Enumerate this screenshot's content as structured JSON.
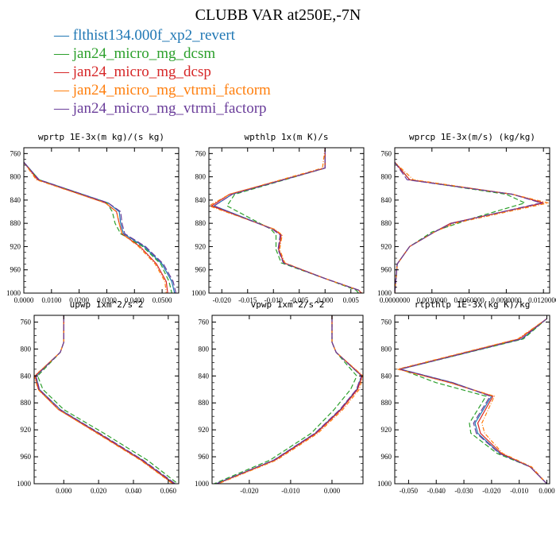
{
  "title": "CLUBB VAR at250E,-7N",
  "legend": [
    {
      "label": "flthist134.000f_xp2_revert",
      "color": "#1f77b4"
    },
    {
      "label": "jan24_micro_mg_dcsm",
      "color": "#2ca02c"
    },
    {
      "label": "jan24_micro_mg_dcsp",
      "color": "#d62728"
    },
    {
      "label": "jan24_micro_mg_vtrmi_factorm",
      "color": "#ff7f0e"
    },
    {
      "label": "jan24_micro_mg_vtrmi_factorp",
      "color": "#6a3d9a"
    }
  ],
  "chart_data": [
    {
      "type": "line",
      "title": "wprtp  1E-3x(m kg)/(s kg)",
      "xlim": [
        0.0,
        0.056
      ],
      "ylim": [
        1000,
        750
      ],
      "xticks": [
        0.0,
        0.01,
        0.02,
        0.03,
        0.04,
        0.05
      ],
      "xtick_labels": [
        "0.0000",
        "0.0100",
        "0.0200",
        "0.0300",
        "0.0400",
        "0.0500"
      ],
      "yticks": [
        760,
        800,
        840,
        880,
        920,
        960,
        1000
      ],
      "series": [
        {
          "name": "flthist134.000f_xp2_revert",
          "x": [
            0.0,
            0.0055,
            0.0305,
            0.0345,
            0.035,
            0.036,
            0.0435,
            0.05,
            0.0535,
            0.0545
          ],
          "y": [
            775,
            805,
            845,
            860,
            880,
            898,
            920,
            950,
            980,
            1000
          ]
        },
        {
          "name": "jan24_micro_mg_dcsm",
          "x": [
            0.0,
            0.0055,
            0.03,
            0.032,
            0.033,
            0.035,
            0.043,
            0.0495,
            0.0525,
            0.0535
          ],
          "y": [
            775,
            805,
            845,
            860,
            880,
            898,
            920,
            950,
            980,
            1000
          ]
        },
        {
          "name": "jan24_micro_mg_dcsp",
          "x": [
            0.0,
            0.005,
            0.0295,
            0.0335,
            0.0345,
            0.0355,
            0.042,
            0.048,
            0.0515,
            0.052
          ],
          "y": [
            775,
            805,
            845,
            860,
            880,
            898,
            920,
            950,
            980,
            1000
          ]
        },
        {
          "name": "jan24_micro_mg_vtrmi_factorm",
          "x": [
            0.0,
            0.0045,
            0.0295,
            0.0335,
            0.0345,
            0.0355,
            0.0415,
            0.0475,
            0.051,
            0.0515
          ],
          "y": [
            775,
            805,
            845,
            860,
            880,
            898,
            920,
            950,
            980,
            1000
          ]
        },
        {
          "name": "jan24_micro_mg_vtrmi_factorp",
          "x": [
            0.0,
            0.0055,
            0.0305,
            0.035,
            0.0355,
            0.0365,
            0.044,
            0.0505,
            0.054,
            0.055
          ],
          "y": [
            775,
            805,
            845,
            860,
            880,
            898,
            920,
            950,
            980,
            1000
          ]
        }
      ]
    },
    {
      "type": "line",
      "title": "wpthlp  1x(m K)/s",
      "xlim": [
        -0.0225,
        0.0075
      ],
      "ylim": [
        1000,
        750
      ],
      "xticks": [
        -0.02,
        -0.015,
        -0.01,
        -0.005,
        0.0,
        0.005
      ],
      "xtick_labels": [
        "-0.020",
        "-0.015",
        "-0.010",
        "-0.005",
        "0.000",
        "0.005"
      ],
      "yticks": [
        760,
        800,
        840,
        880,
        920,
        960,
        1000
      ],
      "series": [
        {
          "name": "flthist134.000f_xp2_revert",
          "x": [
            0.0,
            0.0,
            -0.018,
            -0.0215,
            -0.01,
            -0.0085,
            -0.009,
            -0.008,
            0.0,
            0.0065,
            0.007
          ],
          "y": [
            750,
            785,
            830,
            850,
            890,
            900,
            925,
            948,
            975,
            995,
            1000
          ]
        },
        {
          "name": "jan24_micro_mg_dcsm",
          "x": [
            0.0,
            0.0,
            -0.0175,
            -0.019,
            -0.0105,
            -0.0095,
            -0.0095,
            -0.0085,
            0.0,
            0.006,
            0.0065
          ],
          "y": [
            750,
            785,
            830,
            850,
            890,
            900,
            925,
            948,
            975,
            995,
            1000
          ]
        },
        {
          "name": "jan24_micro_mg_dcsp",
          "x": [
            0.0,
            0.0,
            -0.0185,
            -0.022,
            -0.01,
            -0.0085,
            -0.009,
            -0.008,
            0.0,
            0.0065,
            0.007
          ],
          "y": [
            750,
            785,
            830,
            850,
            890,
            900,
            925,
            948,
            975,
            995,
            1000
          ]
        },
        {
          "name": "jan24_micro_mg_vtrmi_factorm",
          "x": [
            0.0,
            -0.0005,
            -0.0185,
            -0.0225,
            -0.0098,
            -0.0083,
            -0.0088,
            -0.0078,
            0.0,
            0.0065,
            0.0072
          ],
          "y": [
            750,
            785,
            830,
            850,
            890,
            900,
            925,
            948,
            975,
            995,
            1000
          ]
        },
        {
          "name": "jan24_micro_mg_vtrmi_factorp",
          "x": [
            0.0,
            0.0,
            -0.018,
            -0.0215,
            -0.0102,
            -0.0087,
            -0.0091,
            -0.0081,
            0.0,
            0.0065,
            0.007
          ],
          "y": [
            750,
            785,
            830,
            850,
            890,
            900,
            925,
            948,
            975,
            995,
            1000
          ]
        }
      ]
    },
    {
      "type": "line",
      "title": "wprcp  1E-3x(m/s) (kg/kg)",
      "xlim": [
        0.0,
        0.0125
      ],
      "ylim": [
        1000,
        750
      ],
      "xticks": [
        0.0,
        0.003,
        0.006,
        0.009,
        0.012
      ],
      "xtick_labels": [
        "0.0000000",
        "0.0030000",
        "0.0060000",
        "0.0090000",
        "0.0120000"
      ],
      "yticks": [
        760,
        800,
        840,
        880,
        920,
        960,
        1000
      ],
      "series": [
        {
          "name": "flthist134.000f_xp2_revert",
          "x": [
            0.0,
            0.0012,
            0.0095,
            0.012,
            0.0045,
            0.0032,
            0.0012,
            0.0002,
            0.0
          ],
          "y": [
            775,
            805,
            830,
            845,
            880,
            895,
            920,
            950,
            1000
          ]
        },
        {
          "name": "jan24_micro_mg_dcsm",
          "x": [
            0.0,
            0.0012,
            0.009,
            0.0105,
            0.0065,
            0.003,
            0.0012,
            0.0002,
            0.0
          ],
          "y": [
            775,
            805,
            830,
            845,
            870,
            895,
            920,
            950,
            1000
          ]
        },
        {
          "name": "jan24_micro_mg_dcsp",
          "x": [
            0.0,
            0.0012,
            0.0095,
            0.012,
            0.0045,
            0.0032,
            0.0012,
            0.0002,
            0.0
          ],
          "y": [
            775,
            805,
            830,
            845,
            880,
            895,
            920,
            950,
            1000
          ]
        },
        {
          "name": "jan24_micro_mg_vtrmi_factorm",
          "x": [
            0.0,
            0.0015,
            0.0095,
            0.0124,
            0.0048,
            0.0032,
            0.0012,
            0.0002,
            0.0
          ],
          "y": [
            775,
            805,
            830,
            845,
            880,
            895,
            920,
            950,
            1000
          ]
        },
        {
          "name": "jan24_micro_mg_vtrmi_factorp",
          "x": [
            0.0,
            0.001,
            0.0095,
            0.0118,
            0.0046,
            0.0032,
            0.0012,
            0.0002,
            0.0
          ],
          "y": [
            775,
            805,
            830,
            845,
            880,
            895,
            920,
            950,
            1000
          ]
        }
      ]
    },
    {
      "type": "line",
      "title": "upwp  1xm^2/s^2",
      "xlim": [
        -0.017,
        0.066
      ],
      "ylim": [
        1000,
        750
      ],
      "xticks": [
        0.0,
        0.02,
        0.04,
        0.06
      ],
      "xtick_labels": [
        "0.000",
        "0.020",
        "0.040",
        "0.060"
      ],
      "yticks": [
        760,
        800,
        840,
        880,
        920,
        960,
        1000
      ],
      "series": [
        {
          "name": "flthist134.000f_xp2_revert",
          "x": [
            0.0,
            0.0,
            -0.002,
            -0.016,
            -0.014,
            -0.002,
            0.02,
            0.045,
            0.0635
          ],
          "y": [
            750,
            790,
            805,
            840,
            860,
            890,
            925,
            965,
            1000
          ]
        },
        {
          "name": "jan24_micro_mg_dcsm",
          "x": [
            0.0,
            0.0,
            -0.002,
            -0.015,
            -0.012,
            0.0,
            0.023,
            0.048,
            0.0655
          ],
          "y": [
            750,
            790,
            805,
            840,
            860,
            890,
            925,
            965,
            1000
          ]
        },
        {
          "name": "jan24_micro_mg_dcsp",
          "x": [
            0.0,
            0.0,
            -0.002,
            -0.0165,
            -0.0145,
            -0.003,
            0.0195,
            0.0445,
            0.063
          ],
          "y": [
            750,
            790,
            805,
            840,
            860,
            890,
            925,
            965,
            1000
          ]
        },
        {
          "name": "jan24_micro_mg_vtrmi_factorm",
          "x": [
            0.0,
            0.0,
            -0.002,
            -0.0168,
            -0.0148,
            -0.003,
            0.019,
            0.044,
            0.0625
          ],
          "y": [
            750,
            790,
            805,
            840,
            860,
            890,
            925,
            965,
            1000
          ]
        },
        {
          "name": "jan24_micro_mg_vtrmi_factorp",
          "x": [
            0.0,
            0.0,
            -0.002,
            -0.016,
            -0.014,
            -0.002,
            0.0205,
            0.0455,
            0.064
          ],
          "y": [
            750,
            790,
            805,
            840,
            860,
            890,
            925,
            965,
            1000
          ]
        }
      ]
    },
    {
      "type": "line",
      "title": "vpwp  1xm^2/s^2",
      "xlim": [
        -0.029,
        0.0075
      ],
      "ylim": [
        1000,
        750
      ],
      "xticks": [
        -0.02,
        -0.01,
        0.0
      ],
      "xtick_labels": [
        "-0.020",
        "-0.010",
        "0.000"
      ],
      "yticks": [
        760,
        800,
        840,
        880,
        920,
        960,
        1000
      ],
      "series": [
        {
          "name": "flthist134.000f_xp2_revert",
          "x": [
            0.0,
            0.0,
            0.001,
            0.0072,
            0.006,
            0.002,
            -0.004,
            -0.014,
            -0.028
          ],
          "y": [
            750,
            790,
            805,
            840,
            860,
            890,
            925,
            965,
            1000
          ]
        },
        {
          "name": "jan24_micro_mg_dcsm",
          "x": [
            0.0,
            0.0,
            0.001,
            0.006,
            0.0045,
            0.0005,
            -0.005,
            -0.015,
            -0.0285
          ],
          "y": [
            750,
            790,
            805,
            840,
            860,
            890,
            925,
            965,
            1000
          ]
        },
        {
          "name": "jan24_micro_mg_dcsp",
          "x": [
            0.0,
            0.0,
            0.001,
            0.0073,
            0.0062,
            0.0022,
            -0.0038,
            -0.0138,
            -0.0278
          ],
          "y": [
            750,
            790,
            805,
            840,
            860,
            890,
            925,
            965,
            1000
          ]
        },
        {
          "name": "jan24_micro_mg_vtrmi_factorm",
          "x": [
            0.0,
            0.0,
            0.001,
            0.0075,
            0.0066,
            0.0026,
            -0.0034,
            -0.0134,
            -0.0275
          ],
          "y": [
            750,
            790,
            805,
            840,
            860,
            890,
            925,
            965,
            1000
          ]
        },
        {
          "name": "jan24_micro_mg_vtrmi_factorp",
          "x": [
            0.0,
            0.0,
            0.001,
            0.0071,
            0.0059,
            0.0019,
            -0.0041,
            -0.0141,
            -0.028
          ],
          "y": [
            750,
            790,
            805,
            840,
            860,
            890,
            925,
            965,
            1000
          ]
        }
      ]
    },
    {
      "type": "line",
      "title": "rtpthlp  1E-3x(kg K)/kg",
      "xlim": [
        -0.055,
        0.001
      ],
      "ylim": [
        1000,
        750
      ],
      "xticks": [
        -0.05,
        -0.04,
        -0.03,
        -0.02,
        -0.01,
        0.0
      ],
      "xtick_labels": [
        "-0.050",
        "-0.040",
        "-0.030",
        "-0.020",
        "-0.010",
        "0.000"
      ],
      "yticks": [
        760,
        800,
        840,
        880,
        920,
        960,
        1000
      ],
      "series": [
        {
          "name": "flthist134.000f_xp2_revert",
          "x": [
            0.0,
            -0.009,
            -0.053,
            -0.034,
            -0.02,
            -0.026,
            -0.025,
            -0.017,
            -0.006,
            0.0
          ],
          "y": [
            755,
            785,
            830,
            850,
            870,
            910,
            925,
            955,
            975,
            1000
          ]
        },
        {
          "name": "jan24_micro_mg_dcsm",
          "x": [
            0.0,
            -0.0085,
            -0.053,
            -0.04,
            -0.022,
            -0.028,
            -0.0275,
            -0.018,
            -0.006,
            0.0
          ],
          "y": [
            755,
            785,
            830,
            850,
            870,
            910,
            925,
            955,
            975,
            1000
          ]
        },
        {
          "name": "jan24_micro_mg_dcsp",
          "x": [
            0.0,
            -0.01,
            -0.0535,
            -0.035,
            -0.0195,
            -0.025,
            -0.024,
            -0.0165,
            -0.006,
            0.0
          ],
          "y": [
            755,
            785,
            830,
            850,
            870,
            910,
            925,
            955,
            975,
            1000
          ]
        },
        {
          "name": "jan24_micro_mg_vtrmi_factorm",
          "x": [
            0.0,
            -0.0105,
            -0.054,
            -0.035,
            -0.019,
            -0.0235,
            -0.0225,
            -0.016,
            -0.0055,
            0.0
          ],
          "y": [
            755,
            785,
            830,
            850,
            870,
            910,
            925,
            955,
            975,
            1000
          ]
        },
        {
          "name": "jan24_micro_mg_vtrmi_factorp",
          "x": [
            0.0,
            -0.0092,
            -0.053,
            -0.034,
            -0.0205,
            -0.0265,
            -0.0255,
            -0.0172,
            -0.006,
            0.0
          ],
          "y": [
            755,
            785,
            830,
            850,
            870,
            910,
            925,
            955,
            975,
            1000
          ]
        }
      ]
    }
  ]
}
